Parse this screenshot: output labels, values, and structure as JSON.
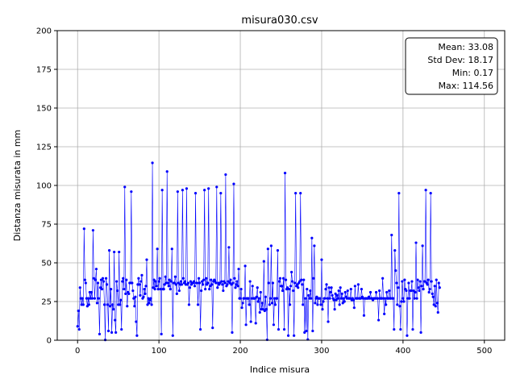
{
  "chart_data": {
    "type": "line",
    "title": "misura030.csv",
    "xlabel": "Indice misura",
    "ylabel": "Distanza misurata in mm",
    "xlim": [
      -25,
      525
    ],
    "ylim": [
      0,
      200
    ],
    "xticks": [
      0,
      100,
      200,
      300,
      400,
      500
    ],
    "yticks": [
      0,
      25,
      50,
      75,
      100,
      125,
      150,
      175,
      200
    ],
    "grid": true,
    "series_color": "#0000ff",
    "stats_box": {
      "placement": "top-right",
      "lines": [
        "Mean: 33.08",
        "Std Dev: 18.17",
        "Min: 0.17",
        "Max: 114.56"
      ]
    },
    "series": [
      {
        "x_start": 0,
        "x_step": 1,
        "values": [
          9,
          19,
          7,
          34,
          27,
          23,
          27,
          23,
          72,
          39,
          37,
          27,
          22,
          27,
          23,
          31,
          27,
          31,
          27,
          71,
          40,
          27,
          39,
          46,
          24,
          37,
          27,
          4,
          34,
          39,
          33,
          40,
          38,
          23,
          0.2,
          40,
          36,
          23,
          6,
          58,
          22,
          33,
          5,
          23,
          20,
          57,
          13,
          5,
          38,
          32,
          23,
          57,
          23,
          26,
          7,
          38,
          40,
          33,
          99,
          30,
          39,
          22,
          31,
          30,
          37,
          37,
          96,
          37,
          32,
          27,
          22,
          28,
          12,
          3,
          36,
          40,
          36,
          29,
          38,
          42,
          27,
          28,
          33,
          30,
          35,
          52,
          23,
          27,
          24,
          26,
          27,
          23,
          114.6,
          34,
          39,
          33,
          38,
          35,
          59,
          33,
          38,
          40,
          33,
          4,
          97,
          33,
          33,
          36,
          41,
          37,
          109,
          37,
          35,
          39,
          33,
          38,
          59,
          3,
          37,
          37,
          41,
          36,
          30,
          96,
          37,
          32,
          36,
          38,
          36,
          97,
          40,
          37,
          38,
          36,
          98,
          36,
          37,
          23,
          34,
          38,
          36,
          37,
          37,
          38,
          35,
          95,
          37,
          37,
          23,
          40,
          37,
          7,
          32,
          38,
          36,
          39,
          97,
          33,
          40,
          36,
          37,
          98,
          33,
          35,
          39,
          36,
          8,
          38,
          39,
          38,
          37,
          99,
          34,
          37,
          36,
          37,
          95,
          38,
          36,
          32,
          38,
          37,
          107,
          35,
          36,
          38,
          60,
          37,
          39,
          36,
          5,
          37,
          101,
          40,
          34,
          36,
          38,
          35,
          46,
          27,
          27,
          33,
          21,
          24,
          27,
          27,
          48,
          10,
          27,
          27,
          27,
          23,
          38,
          12,
          27,
          35,
          27,
          27,
          27,
          11,
          28,
          34,
          25,
          27,
          18,
          31,
          20,
          24,
          20,
          51,
          19,
          28,
          20,
          0.3,
          59,
          37,
          23,
          27,
          61,
          24,
          37,
          10,
          27,
          23,
          27,
          27,
          58,
          7,
          38,
          40,
          35,
          35,
          32,
          40,
          7,
          108,
          39,
          33,
          34,
          3,
          33,
          23,
          35,
          44,
          38,
          32,
          3,
          37,
          95,
          35,
          36,
          34,
          37,
          38,
          95,
          39,
          36,
          23,
          39,
          5,
          27,
          6,
          33,
          0.5,
          29,
          27,
          32,
          27,
          66,
          6,
          40,
          61,
          24,
          27,
          28,
          23,
          27,
          27,
          27,
          23,
          52,
          20,
          25,
          27,
          27,
          33,
          36,
          27,
          12,
          34,
          27,
          31,
          34,
          29,
          27,
          26,
          20,
          30,
          26,
          29,
          27,
          32,
          23,
          34,
          27,
          30,
          24,
          27,
          25,
          31,
          28,
          27,
          32,
          27,
          27,
          27,
          33,
          26,
          27,
          26,
          21,
          35,
          27,
          27,
          27,
          36,
          27,
          27,
          27,
          33,
          28,
          27,
          16,
          27,
          27,
          27,
          27,
          27,
          28,
          27,
          31,
          27,
          27,
          26,
          27,
          27,
          27,
          31,
          27,
          27,
          13,
          32,
          27,
          27,
          27,
          40,
          27,
          17,
          27,
          23,
          31,
          27,
          27,
          32,
          27,
          27,
          68,
          27,
          27,
          7,
          58,
          45,
          37,
          23,
          34,
          95,
          22,
          7,
          25,
          38,
          27,
          25,
          39,
          33,
          32,
          3,
          27,
          37,
          27,
          32,
          32,
          38,
          7,
          32,
          27,
          31,
          63,
          27,
          39,
          34,
          32,
          38,
          5,
          35,
          61,
          33,
          38,
          38,
          97,
          37,
          36,
          39,
          31,
          33,
          95,
          38,
          30,
          28,
          23,
          35,
          22,
          39,
          24,
          18,
          37,
          34
        ]
      }
    ]
  }
}
